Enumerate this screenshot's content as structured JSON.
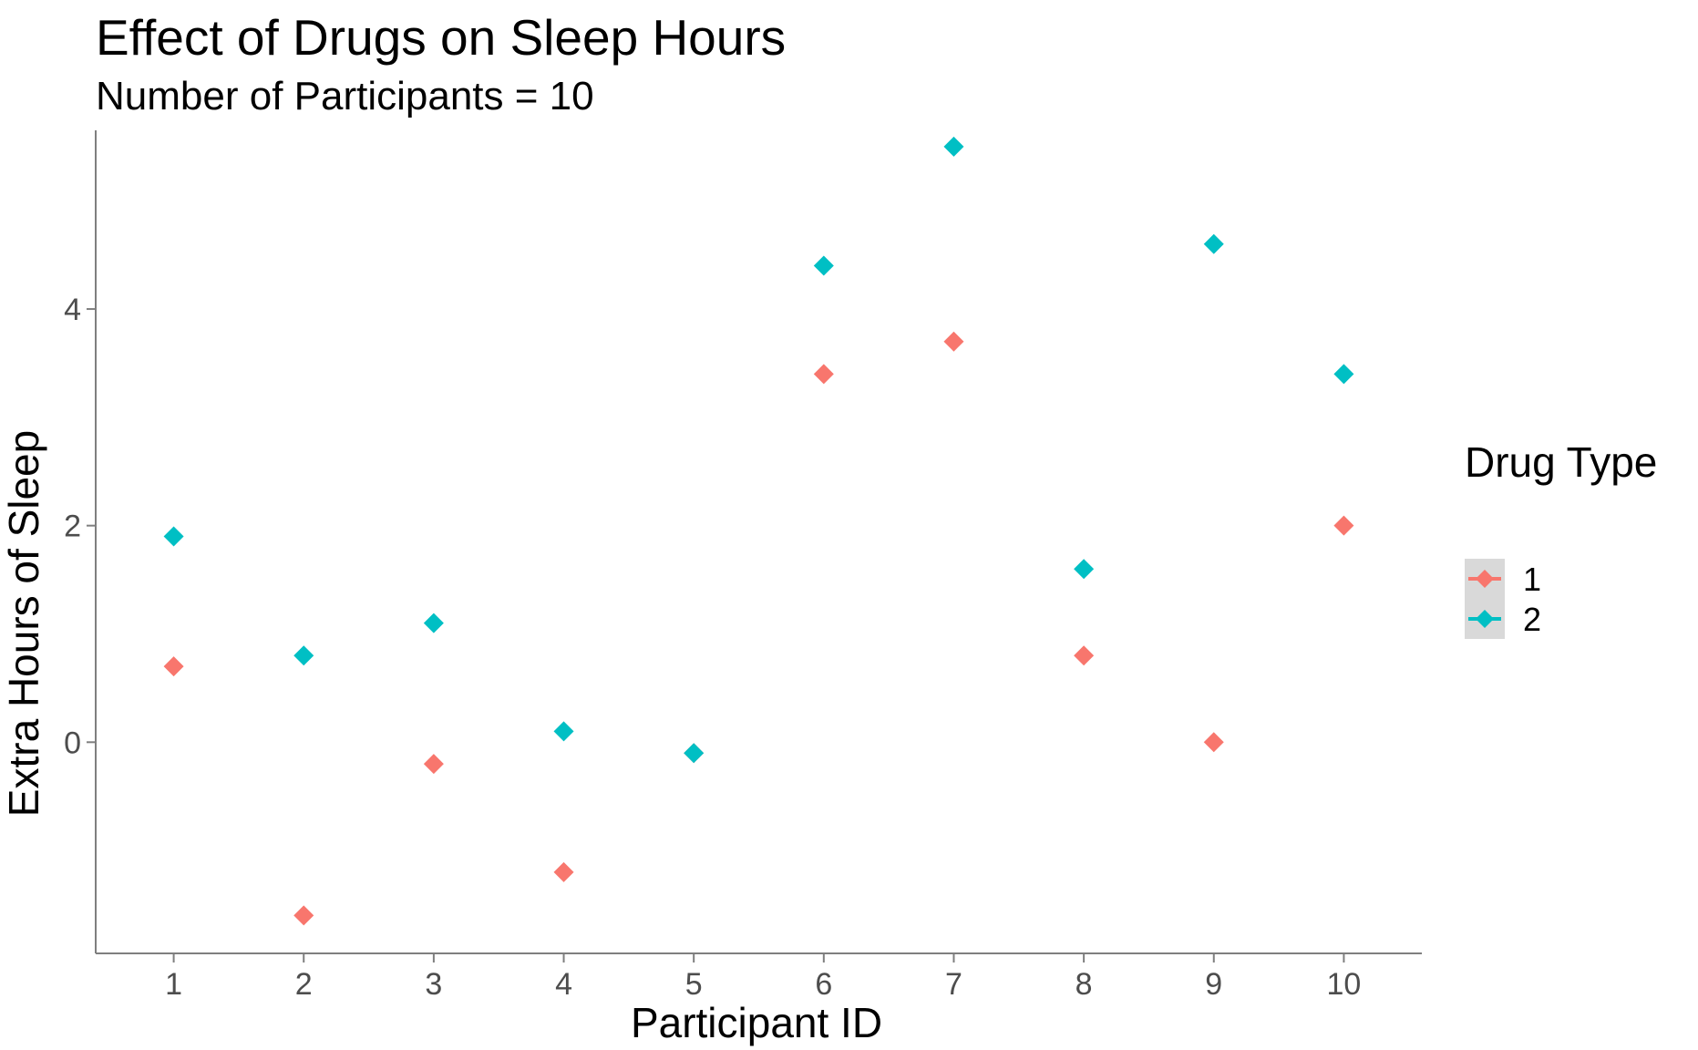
{
  "chart_data": {
    "type": "scatter",
    "title": "Effect of Drugs on Sleep Hours",
    "subtitle": "Number of Participants = 10",
    "xlabel": "Participant ID",
    "ylabel": "Extra Hours of Sleep",
    "x": [
      1,
      2,
      3,
      4,
      5,
      6,
      7,
      8,
      9,
      10
    ],
    "x_ticks": [
      "1",
      "2",
      "3",
      "4",
      "5",
      "6",
      "7",
      "8",
      "9",
      "10"
    ],
    "y_ticks": [
      "0",
      "2",
      "4"
    ],
    "xlim": [
      0.4,
      10.6
    ],
    "ylim": [
      -1.95,
      5.65
    ],
    "grid": false,
    "legend": {
      "title": "Drug Type",
      "placement": "right"
    },
    "series": [
      {
        "name": "1",
        "color": "#F8766D",
        "marker": "diamond",
        "values": [
          0.7,
          -1.6,
          -0.2,
          -1.2,
          -0.1,
          3.4,
          3.7,
          0.8,
          0.0,
          2.0
        ]
      },
      {
        "name": "2",
        "color": "#00BFC4",
        "marker": "diamond",
        "values": [
          1.9,
          0.8,
          1.1,
          0.1,
          -0.1,
          4.4,
          5.5,
          1.6,
          4.6,
          3.4
        ]
      }
    ]
  }
}
